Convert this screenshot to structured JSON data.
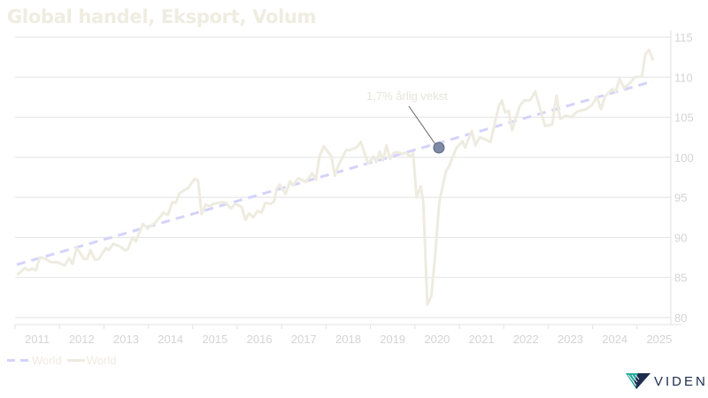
{
  "chart_data": {
    "type": "line",
    "title": "Global handel, Eksport, Volum",
    "xlabel": "",
    "ylabel": "",
    "xlim": [
      2011,
      2026
    ],
    "ylim": [
      80,
      115
    ],
    "y_ticks": [
      80,
      85,
      90,
      95,
      100,
      105,
      110,
      115
    ],
    "x_tick_labels": [
      "2011",
      "2012",
      "2013",
      "2014",
      "2015",
      "2016",
      "2017",
      "2018",
      "2019",
      "2020",
      "2021",
      "2022",
      "2023",
      "2024",
      "2025"
    ],
    "y_axis_side": "right",
    "grid": true,
    "legend_position": "bottom-left",
    "annotation": {
      "text": "1,7% årlig vekst",
      "x": 2020.54,
      "y": 101.2
    },
    "colors": {
      "actual": "#eeebe0",
      "trend": "#d3d3fb",
      "marker": "#7d8aa5",
      "grid": "#e2e2e2",
      "title": "#efece1"
    },
    "series": [
      {
        "name": "World",
        "style": "dashed",
        "points": [
          [
            2011.04,
            86.6
          ],
          [
            2025.36,
            109.5
          ]
        ]
      },
      {
        "name": "World",
        "style": "solid",
        "points": [
          [
            2011.05,
            85.3
          ],
          [
            2011.22,
            86.2
          ],
          [
            2011.29,
            85.9
          ],
          [
            2011.39,
            86.1
          ],
          [
            2011.47,
            85.9
          ],
          [
            2011.56,
            87.5
          ],
          [
            2011.66,
            87.4
          ],
          [
            2011.82,
            86.9
          ],
          [
            2011.95,
            86.9
          ],
          [
            2012.12,
            86.5
          ],
          [
            2012.22,
            87.4
          ],
          [
            2012.29,
            86.7
          ],
          [
            2012.39,
            88.7
          ],
          [
            2012.55,
            87.3
          ],
          [
            2012.62,
            87.3
          ],
          [
            2012.7,
            88.4
          ],
          [
            2012.8,
            87.2
          ],
          [
            2012.88,
            87.3
          ],
          [
            2013.05,
            88.7
          ],
          [
            2013.11,
            88.4
          ],
          [
            2013.21,
            89.2
          ],
          [
            2013.35,
            88.9
          ],
          [
            2013.48,
            88.4
          ],
          [
            2013.54,
            88.5
          ],
          [
            2013.64,
            90.0
          ],
          [
            2013.72,
            89.5
          ],
          [
            2013.88,
            91.7
          ],
          [
            2013.98,
            91.1
          ],
          [
            2014.17,
            91.9
          ],
          [
            2014.34,
            93.1
          ],
          [
            2014.44,
            92.8
          ],
          [
            2014.54,
            94.4
          ],
          [
            2014.62,
            94.3
          ],
          [
            2014.7,
            95.5
          ],
          [
            2014.9,
            96.2
          ],
          [
            2015.04,
            97.3
          ],
          [
            2015.12,
            97.1
          ],
          [
            2015.2,
            92.9
          ],
          [
            2015.29,
            94.1
          ],
          [
            2015.37,
            93.9
          ],
          [
            2015.47,
            94.2
          ],
          [
            2015.67,
            94.4
          ],
          [
            2015.75,
            94.3
          ],
          [
            2015.86,
            93.6
          ],
          [
            2015.95,
            94.2
          ],
          [
            2016.1,
            93.8
          ],
          [
            2016.19,
            92.2
          ],
          [
            2016.26,
            93.0
          ],
          [
            2016.36,
            92.5
          ],
          [
            2016.46,
            93.3
          ],
          [
            2016.55,
            93.1
          ],
          [
            2016.63,
            94.3
          ],
          [
            2016.76,
            94.2
          ],
          [
            2016.83,
            94.5
          ],
          [
            2016.89,
            96.1
          ],
          [
            2016.96,
            96.6
          ],
          [
            2017.09,
            95.4
          ],
          [
            2017.19,
            97.0
          ],
          [
            2017.26,
            96.5
          ],
          [
            2017.37,
            97.4
          ],
          [
            2017.55,
            96.9
          ],
          [
            2017.69,
            98.0
          ],
          [
            2017.77,
            97.2
          ],
          [
            2017.85,
            100.1
          ],
          [
            2017.95,
            101.4
          ],
          [
            2018.12,
            100.1
          ],
          [
            2018.2,
            97.7
          ],
          [
            2018.28,
            99.0
          ],
          [
            2018.45,
            100.9
          ],
          [
            2018.53,
            100.9
          ],
          [
            2018.68,
            101.2
          ],
          [
            2018.78,
            101.9
          ],
          [
            2018.95,
            99.2
          ],
          [
            2019.07,
            100.1
          ],
          [
            2019.13,
            99.4
          ],
          [
            2019.21,
            100.7
          ],
          [
            2019.28,
            99.6
          ],
          [
            2019.36,
            101.5
          ],
          [
            2019.44,
            99.8
          ],
          [
            2019.53,
            100.6
          ],
          [
            2019.64,
            100.6
          ],
          [
            2019.73,
            100.4
          ],
          [
            2019.79,
            100.6
          ],
          [
            2019.89,
            100.1
          ],
          [
            2019.96,
            100.5
          ],
          [
            2020.04,
            95.0
          ],
          [
            2020.13,
            96.4
          ],
          [
            2020.19,
            94.4
          ],
          [
            2020.28,
            81.6
          ],
          [
            2020.37,
            82.7
          ],
          [
            2020.46,
            88.0
          ],
          [
            2020.55,
            94.4
          ],
          [
            2020.7,
            98.3
          ],
          [
            2020.77,
            98.9
          ],
          [
            2020.87,
            100.3
          ],
          [
            2020.93,
            101.1
          ],
          [
            2021.07,
            102.0
          ],
          [
            2021.13,
            101.2
          ],
          [
            2021.28,
            103.3
          ],
          [
            2021.36,
            101.5
          ],
          [
            2021.46,
            102.5
          ],
          [
            2021.56,
            102.3
          ],
          [
            2021.7,
            101.9
          ],
          [
            2021.89,
            106.4
          ],
          [
            2021.96,
            107.1
          ],
          [
            2022.03,
            105.6
          ],
          [
            2022.11,
            105.8
          ],
          [
            2022.19,
            103.4
          ],
          [
            2022.36,
            106.4
          ],
          [
            2022.46,
            107.1
          ],
          [
            2022.59,
            107.1
          ],
          [
            2022.71,
            108.2
          ],
          [
            2022.93,
            103.9
          ],
          [
            2023.09,
            104.1
          ],
          [
            2023.19,
            107.7
          ],
          [
            2023.27,
            104.8
          ],
          [
            2023.39,
            105.2
          ],
          [
            2023.52,
            105.0
          ],
          [
            2023.65,
            105.7
          ],
          [
            2023.85,
            106.0
          ],
          [
            2023.98,
            106.5
          ],
          [
            2024.1,
            107.5
          ],
          [
            2024.19,
            106.0
          ],
          [
            2024.28,
            107.6
          ],
          [
            2024.44,
            108.5
          ],
          [
            2024.52,
            108.2
          ],
          [
            2024.61,
            109.8
          ],
          [
            2024.71,
            108.6
          ],
          [
            2024.84,
            109.3
          ],
          [
            2024.96,
            110.0
          ],
          [
            2025.11,
            110.1
          ],
          [
            2025.19,
            112.9
          ],
          [
            2025.27,
            113.4
          ],
          [
            2025.36,
            112.1
          ]
        ]
      }
    ]
  },
  "legend": {
    "items": [
      "World",
      "World"
    ]
  },
  "logo": {
    "text": "VIDEN"
  }
}
